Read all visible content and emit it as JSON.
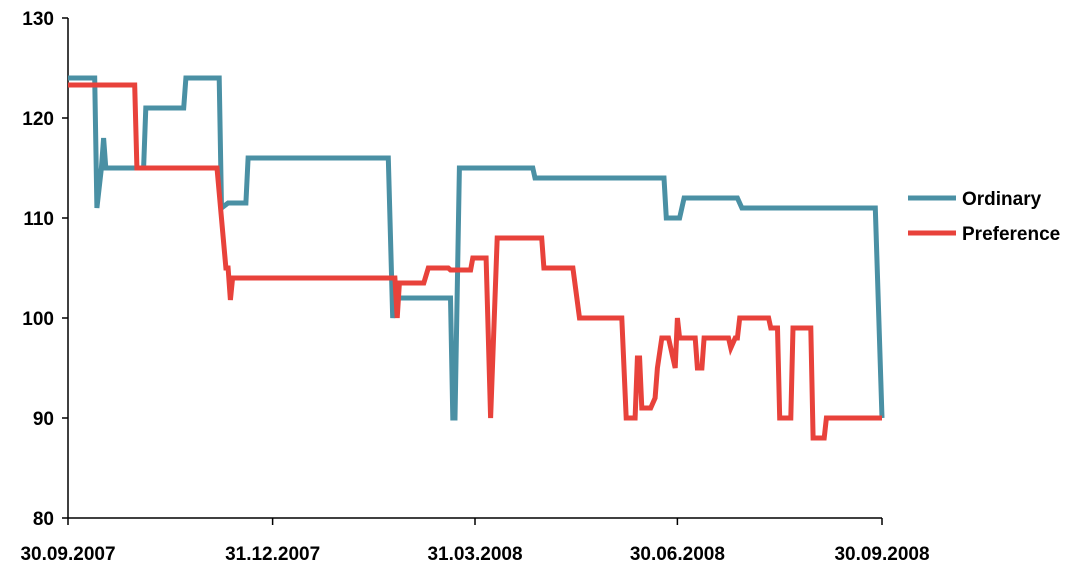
{
  "chart_data": {
    "type": "line",
    "xlabel": "",
    "ylabel": "",
    "x_axis": {
      "type": "date",
      "range": [
        "2007-09-30",
        "2008-09-30"
      ],
      "tick_dates": [
        "2007-09-30",
        "2007-12-31",
        "2008-03-31",
        "2008-06-30",
        "2008-09-30"
      ],
      "tick_labels": [
        "30.09.2007",
        "31.12.2007",
        "31.03.2008",
        "30.06.2008",
        "30.09.2008"
      ]
    },
    "y_axis": {
      "range": [
        80,
        130
      ],
      "ticks": [
        80,
        90,
        100,
        110,
        120,
        130
      ],
      "tick_labels": [
        "80",
        "90",
        "100",
        "110",
        "120",
        "130"
      ]
    },
    "grid": false,
    "legend_position": "right",
    "series": [
      {
        "name": "Ordinary",
        "color": "#4a90a4",
        "points": [
          [
            "2007-09-30",
            124
          ],
          [
            "2007-10-12",
            124
          ],
          [
            "2007-10-13",
            111
          ],
          [
            "2007-10-15",
            115
          ],
          [
            "2007-10-16",
            118
          ],
          [
            "2007-10-17",
            115
          ],
          [
            "2007-11-03",
            115
          ],
          [
            "2007-11-04",
            121
          ],
          [
            "2007-11-21",
            121
          ],
          [
            "2007-11-22",
            124
          ],
          [
            "2007-12-07",
            124
          ],
          [
            "2007-12-08",
            111
          ],
          [
            "2007-12-11",
            111.5
          ],
          [
            "2007-12-19",
            111.5
          ],
          [
            "2007-12-20",
            116
          ],
          [
            "2008-02-21",
            116
          ],
          [
            "2008-02-23",
            100
          ],
          [
            "2008-02-24",
            102
          ],
          [
            "2008-03-20",
            102
          ],
          [
            "2008-03-21",
            90
          ],
          [
            "2008-03-22",
            90
          ],
          [
            "2008-03-24",
            115
          ],
          [
            "2008-04-26",
            115
          ],
          [
            "2008-04-27",
            114
          ],
          [
            "2008-06-24",
            114
          ],
          [
            "2008-06-25",
            110
          ],
          [
            "2008-07-01",
            110
          ],
          [
            "2008-07-03",
            112
          ],
          [
            "2008-07-27",
            112
          ],
          [
            "2008-07-29",
            111
          ],
          [
            "2008-09-27",
            111
          ],
          [
            "2008-09-30",
            90
          ]
        ]
      },
      {
        "name": "Preference",
        "color": "#e8423b",
        "points": [
          [
            "2007-09-30",
            123.3
          ],
          [
            "2007-10-30",
            123.3
          ],
          [
            "2007-10-31",
            115
          ],
          [
            "2007-12-06",
            115
          ],
          [
            "2007-12-10",
            105
          ],
          [
            "2007-12-11",
            105
          ],
          [
            "2007-12-12",
            101.8
          ],
          [
            "2007-12-13",
            104
          ],
          [
            "2008-02-24",
            104
          ],
          [
            "2008-02-25",
            100
          ],
          [
            "2008-02-26",
            103.5
          ],
          [
            "2008-03-08",
            103.5
          ],
          [
            "2008-03-10",
            105
          ],
          [
            "2008-03-19",
            105
          ],
          [
            "2008-03-20",
            104.8
          ],
          [
            "2008-03-29",
            104.8
          ],
          [
            "2008-03-30",
            106
          ],
          [
            "2008-04-05",
            106
          ],
          [
            "2008-04-07",
            90
          ],
          [
            "2008-04-10",
            108
          ],
          [
            "2008-04-30",
            108
          ],
          [
            "2008-05-01",
            105
          ],
          [
            "2008-05-14",
            105
          ],
          [
            "2008-05-17",
            100
          ],
          [
            "2008-06-05",
            100
          ],
          [
            "2008-06-07",
            90
          ],
          [
            "2008-06-11",
            90
          ],
          [
            "2008-06-12",
            96
          ],
          [
            "2008-06-13",
            96
          ],
          [
            "2008-06-14",
            91
          ],
          [
            "2008-06-18",
            91
          ],
          [
            "2008-06-20",
            92
          ],
          [
            "2008-06-21",
            95
          ],
          [
            "2008-06-23",
            98
          ],
          [
            "2008-06-26",
            98
          ],
          [
            "2008-06-29",
            95
          ],
          [
            "2008-06-30",
            100
          ],
          [
            "2008-07-01",
            98
          ],
          [
            "2008-07-08",
            98
          ],
          [
            "2008-07-09",
            95
          ],
          [
            "2008-07-11",
            95
          ],
          [
            "2008-07-12",
            98
          ],
          [
            "2008-07-23",
            98
          ],
          [
            "2008-07-24",
            97
          ],
          [
            "2008-07-26",
            98
          ],
          [
            "2008-07-27",
            98
          ],
          [
            "2008-07-28",
            100
          ],
          [
            "2008-08-10",
            100
          ],
          [
            "2008-08-11",
            99
          ],
          [
            "2008-08-14",
            99
          ],
          [
            "2008-08-15",
            90
          ],
          [
            "2008-08-20",
            90
          ],
          [
            "2008-08-21",
            99
          ],
          [
            "2008-08-29",
            99
          ],
          [
            "2008-08-30",
            88
          ],
          [
            "2008-09-04",
            88
          ],
          [
            "2008-09-05",
            90
          ],
          [
            "2008-09-30",
            90
          ]
        ]
      }
    ]
  }
}
